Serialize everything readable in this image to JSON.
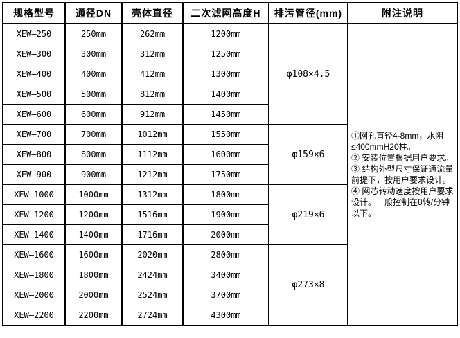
{
  "colors": {
    "background": "#ffffff",
    "border": "#000000",
    "text": "#000000"
  },
  "table": {
    "headers": [
      {
        "id": "model",
        "label": "规格型号"
      },
      {
        "id": "dn",
        "label": "通径DN"
      },
      {
        "id": "shell",
        "label": "壳体直径"
      },
      {
        "id": "height",
        "label": "二次滤网高度H"
      },
      {
        "id": "drain",
        "label": "排污管径(mm)"
      },
      {
        "id": "notes",
        "label": "附注说明"
      }
    ],
    "rows": [
      {
        "model": "XEW—250",
        "dn": "250mm",
        "shell": "262mm",
        "height": "1200mm"
      },
      {
        "model": "XEW—300",
        "dn": "300mm",
        "shell": "312mm",
        "height": "1250mm"
      },
      {
        "model": "XEW—400",
        "dn": "400mm",
        "shell": "412mm",
        "height": "1300mm"
      },
      {
        "model": "XEW—500",
        "dn": "500mm",
        "shell": "812mm",
        "height": "1400mm"
      },
      {
        "model": "XEW—600",
        "dn": "600mm",
        "shell": "912mm",
        "height": "1450mm"
      },
      {
        "model": "XEW—700",
        "dn": "700mm",
        "shell": "1012mm",
        "height": "1550mm"
      },
      {
        "model": "XEW—800",
        "dn": "800mm",
        "shell": "1112mm",
        "height": "1600mm"
      },
      {
        "model": "XEW—900",
        "dn": "900mm",
        "shell": "1212mm",
        "height": "1750mm"
      },
      {
        "model": "XEW—1000",
        "dn": "1000mm",
        "shell": "1312mm",
        "height": "1800mm"
      },
      {
        "model": "XEW—1200",
        "dn": "1200mm",
        "shell": "1516mm",
        "height": "1900mm"
      },
      {
        "model": "XEW—1400",
        "dn": "1400mm",
        "shell": "1716mm",
        "height": "2000mm"
      },
      {
        "model": "XEW—1600",
        "dn": "1600mm",
        "shell": "2020mm",
        "height": "2800mm"
      },
      {
        "model": "XEW—1800",
        "dn": "1800mm",
        "shell": "2424mm",
        "height": "3400mm"
      },
      {
        "model": "XEW—2000",
        "dn": "2000mm",
        "shell": "2524mm",
        "height": "3700mm"
      },
      {
        "model": "XEW—2200",
        "dn": "2200mm",
        "shell": "2724mm",
        "height": "4300mm"
      }
    ],
    "drain_groups": [
      {
        "label": "φ108×4.5",
        "rowspan": 5
      },
      {
        "label": "φ159×6",
        "rowspan": 3
      },
      {
        "label": "φ219×6",
        "rowspan": 3
      },
      {
        "label": "φ273×8",
        "rowspan": 4
      }
    ],
    "notes": [
      "①网孔直径4-8mm，水阻≤400mmH20柱。",
      "② 安装位置根据用户要求。",
      "③ 结构外型尺寸保证通流量前提下，按用户要求设计。",
      "④ 网芯转动速度按用户要求设计。一般控制在8转/分钟以下。"
    ]
  }
}
